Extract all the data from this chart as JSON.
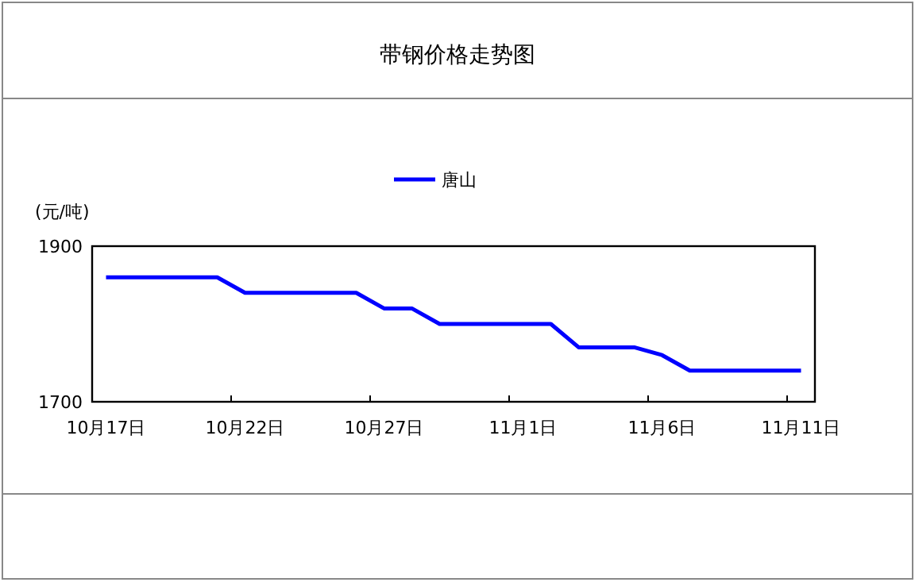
{
  "chart_data": {
    "type": "line",
    "title": "带钢价格走势图",
    "ylabel": "(元/吨)",
    "categories": [
      "10月17日",
      null,
      null,
      null,
      null,
      "10月22日",
      null,
      null,
      null,
      null,
      "10月27日",
      null,
      null,
      null,
      null,
      "11月1日",
      null,
      null,
      null,
      null,
      "11月6日",
      null,
      null,
      null,
      null,
      "11月11日"
    ],
    "series": [
      {
        "name": "唐山",
        "color": "#0000ff",
        "values": [
          1860,
          1860,
          1860,
          1860,
          1860,
          1840,
          1840,
          1840,
          1840,
          1840,
          1820,
          1820,
          1800,
          1800,
          1800,
          1800,
          1800,
          1770,
          1770,
          1770,
          1760,
          1740,
          1740,
          1740,
          1740,
          1740
        ]
      }
    ],
    "ylim": [
      1700,
      1900
    ],
    "yticks": [
      1700,
      1900
    ],
    "grid": false,
    "legend": "top",
    "marker": "none",
    "line_style": "solid"
  }
}
